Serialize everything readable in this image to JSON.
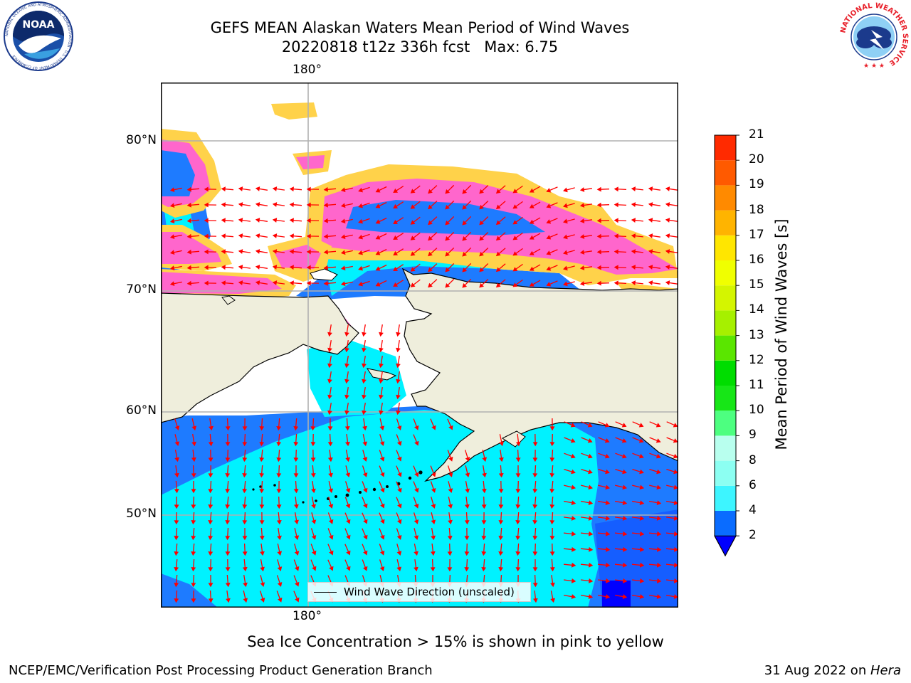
{
  "header": {
    "title_line1": "GEFS MEAN Alaskan Waters Mean Period of Wind Waves",
    "title_line2": "20220818 t12z 336h fcst   Max: 6.75"
  },
  "logos": {
    "noaa_text": "NOAA",
    "noaa_ring_text": "NATIONAL OCEANIC AND ATMOSPHERIC ADMINISTRATION · U.S. DEPARTMENT OF COMMERCE",
    "nws_ring_text": "NATIONAL WEATHER SERVICE"
  },
  "map": {
    "lon_label": "180°",
    "lat_labels": [
      "80°N",
      "70°N",
      "60°N",
      "50°N"
    ],
    "legend_text": "Wind Wave Direction (unscaled)",
    "colors": {
      "land": "#efeedc",
      "ice_pink": "#ff66cc",
      "ice_yellow": "#ffd24a",
      "wave_blue": "#1e7bff",
      "wave_cyan": "#00f2ff",
      "wave_deep": "#0000ff",
      "arrow": "#ff0000",
      "grid": "#b0b0b0"
    }
  },
  "colorbar": {
    "label": "Mean Period of Wind Waves [s]",
    "ticks": [
      "2",
      "4",
      "6",
      "8",
      "9",
      "10",
      "11",
      "12",
      "13",
      "14",
      "15",
      "16",
      "17",
      "18",
      "19",
      "20",
      "21"
    ],
    "colors": [
      "#0a6cff",
      "#00e5ff",
      "#3df5ff",
      "#8cfff2",
      "#b8ffee",
      "#4dff80",
      "#17e617",
      "#00dd00",
      "#5ae600",
      "#a6f000",
      "#d4f500",
      "#f0ff00",
      "#ffe600",
      "#ffb400",
      "#ff8a00",
      "#ff5a00",
      "#ff2a00",
      "#ff0000"
    ],
    "extend_color": "#0000ff"
  },
  "footer": {
    "caption": "Sea Ice Concentration > 15% is shown in pink to yellow",
    "credit": "NCEP/EMC/Verification Post Processing Product Generation Branch",
    "date": "31 Aug 2022 on ",
    "host": "Hera"
  }
}
